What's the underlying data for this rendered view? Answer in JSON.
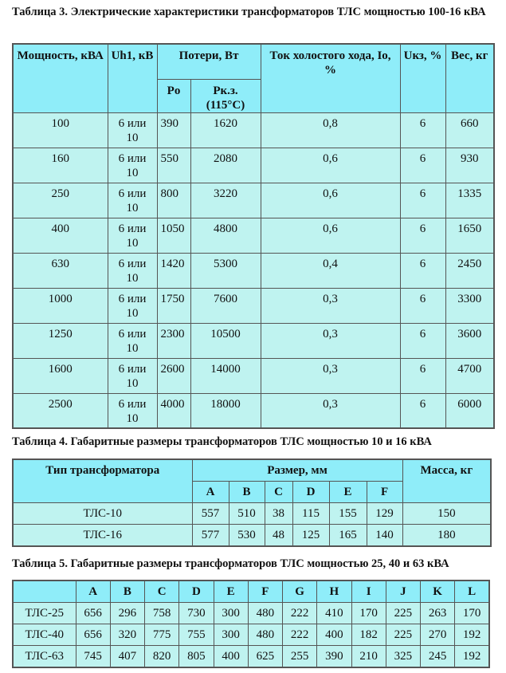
{
  "table3": {
    "caption": "Таблица 3. Электрические характеристики трансформаторов ТЛС мощностью 100-16 кВА",
    "headers": {
      "power": "Мощность, кВА",
      "uh1": "Uh1, кВ",
      "losses": "Потери, Вт",
      "po": "Po",
      "pkz": "Pк.з. (115°C)",
      "io": "Ток холостого хода, Io, %",
      "ukz": "Uкз, %",
      "weight": "Вес, кг"
    },
    "rows": [
      [
        "100",
        "6 или 10",
        "390",
        "1620",
        "0,8",
        "6",
        "660"
      ],
      [
        "160",
        "6 или 10",
        "550",
        "2080",
        "0,6",
        "6",
        "930"
      ],
      [
        "250",
        "6 или 10",
        "800",
        "3220",
        "0,6",
        "6",
        "1335"
      ],
      [
        "400",
        "6 или 10",
        "1050",
        "4800",
        "0,6",
        "6",
        "1650"
      ],
      [
        "630",
        "6 или 10",
        "1420",
        "5300",
        "0,4",
        "6",
        "2450"
      ],
      [
        "1000",
        "6 или 10",
        "1750",
        "7600",
        "0,3",
        "6",
        "3300"
      ],
      [
        "1250",
        "6 или 10",
        "2300",
        "10500",
        "0,3",
        "6",
        "3600"
      ],
      [
        "1600",
        "6 или 10",
        "2600",
        "14000",
        "0,3",
        "6",
        "4700"
      ],
      [
        "2500",
        "6 или 10",
        "4000",
        "18000",
        "0,3",
        "6",
        "6000"
      ]
    ]
  },
  "table4": {
    "caption": "Таблица 4. Габаритные размеры трансформаторов ТЛС мощностью 10 и 16 кВА",
    "headers": {
      "type": "Тип трансформатора",
      "size": "Размер, мм",
      "mass": "Масса, кг",
      "cols": [
        "A",
        "B",
        "C",
        "D",
        "E",
        "F"
      ]
    },
    "rows": [
      [
        "ТЛС-10",
        "557",
        "510",
        "38",
        "115",
        "155",
        "129",
        "150"
      ],
      [
        "ТЛС-16",
        "577",
        "530",
        "48",
        "125",
        "165",
        "140",
        "180"
      ]
    ]
  },
  "table5": {
    "caption": "Таблица 5. Габаритные размеры трансформаторов ТЛС мощностью 25, 40 и 63 кВА",
    "cols": [
      "A",
      "B",
      "C",
      "D",
      "E",
      "F",
      "G",
      "H",
      "I",
      "J",
      "K",
      "L"
    ],
    "rows": [
      [
        "ТЛС-25",
        "656",
        "296",
        "758",
        "730",
        "300",
        "480",
        "222",
        "410",
        "170",
        "225",
        "263",
        "170"
      ],
      [
        "ТЛС-40",
        "656",
        "320",
        "775",
        "755",
        "300",
        "480",
        "222",
        "400",
        "182",
        "225",
        "270",
        "192"
      ],
      [
        "ТЛС-63",
        "745",
        "407",
        "820",
        "805",
        "400",
        "625",
        "255",
        "390",
        "210",
        "325",
        "245",
        "192"
      ]
    ]
  },
  "colors": {
    "header_bg": "#8fedf9",
    "cell_bg": "#bff3f0"
  }
}
